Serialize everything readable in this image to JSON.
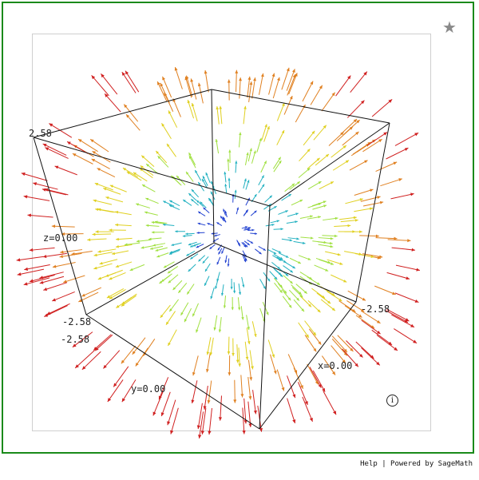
{
  "viewer": {
    "star_icon": "star-icon",
    "info_icon": "info-icon",
    "star_glyph": "★",
    "info_glyph": "i",
    "frame_color": "#1a8a1a"
  },
  "axes": {
    "z_max": "2.58",
    "z_mid": "z=0.00",
    "z_min": "-2.58",
    "y_min": "-2.58",
    "y_mid": "y=0.00",
    "x_min": "-2.58",
    "x_mid": "x=0.00"
  },
  "plot": {
    "type": "3d-vector-field",
    "colormap": [
      "#2040d0",
      "#20b0c0",
      "#a0e040",
      "#e0d020",
      "#e08020",
      "#d02020"
    ]
  },
  "footer": {
    "help": "Help",
    "separator": "|",
    "powered": "Powered by SageMath"
  }
}
